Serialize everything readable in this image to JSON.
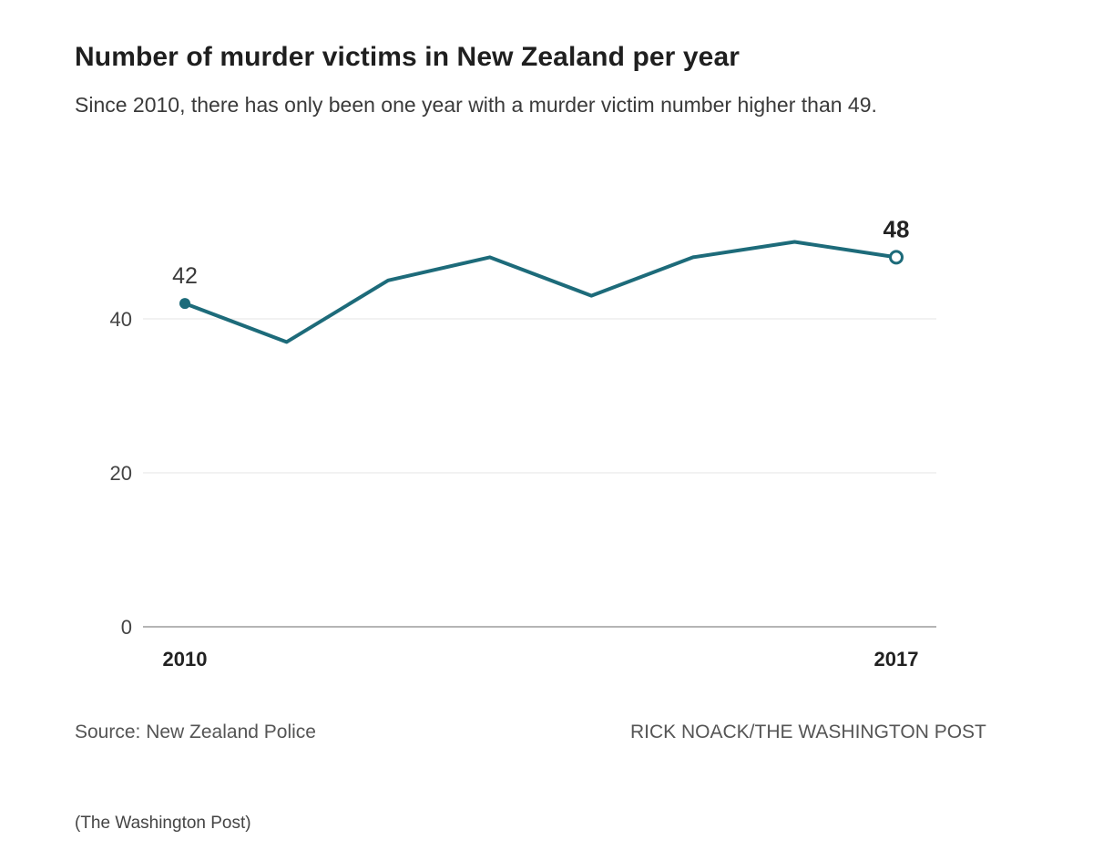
{
  "header": {
    "title": "Number of murder victims in New Zealand per year",
    "subtitle": "Since 2010, there has only been one year with a murder victim number higher than 49."
  },
  "footer": {
    "source": "Source: New Zealand Police",
    "credit": "RICK NOACK/THE WASHINGTON POST",
    "note": "(The Washington Post)"
  },
  "chart_data": {
    "type": "line",
    "title": "Number of murder victims in New Zealand per year",
    "subtitle": "Since 2010, there has only been one year with a murder victim number higher than 49.",
    "xlabel": "",
    "ylabel": "",
    "x": [
      2010,
      2011,
      2012,
      2013,
      2014,
      2015,
      2016,
      2017
    ],
    "x_tick_labels": [
      "2010",
      "2017"
    ],
    "y_ticks": [
      0,
      20,
      40
    ],
    "ylim": [
      0,
      52
    ],
    "grid": true,
    "series": [
      {
        "values": [
          42,
          37,
          45,
          48,
          43,
          48,
          50,
          48
        ],
        "color": "#1d6b7a"
      }
    ],
    "annotations": [
      {
        "x": 2010,
        "label": "42"
      },
      {
        "x": 2017,
        "label": "48"
      }
    ]
  }
}
